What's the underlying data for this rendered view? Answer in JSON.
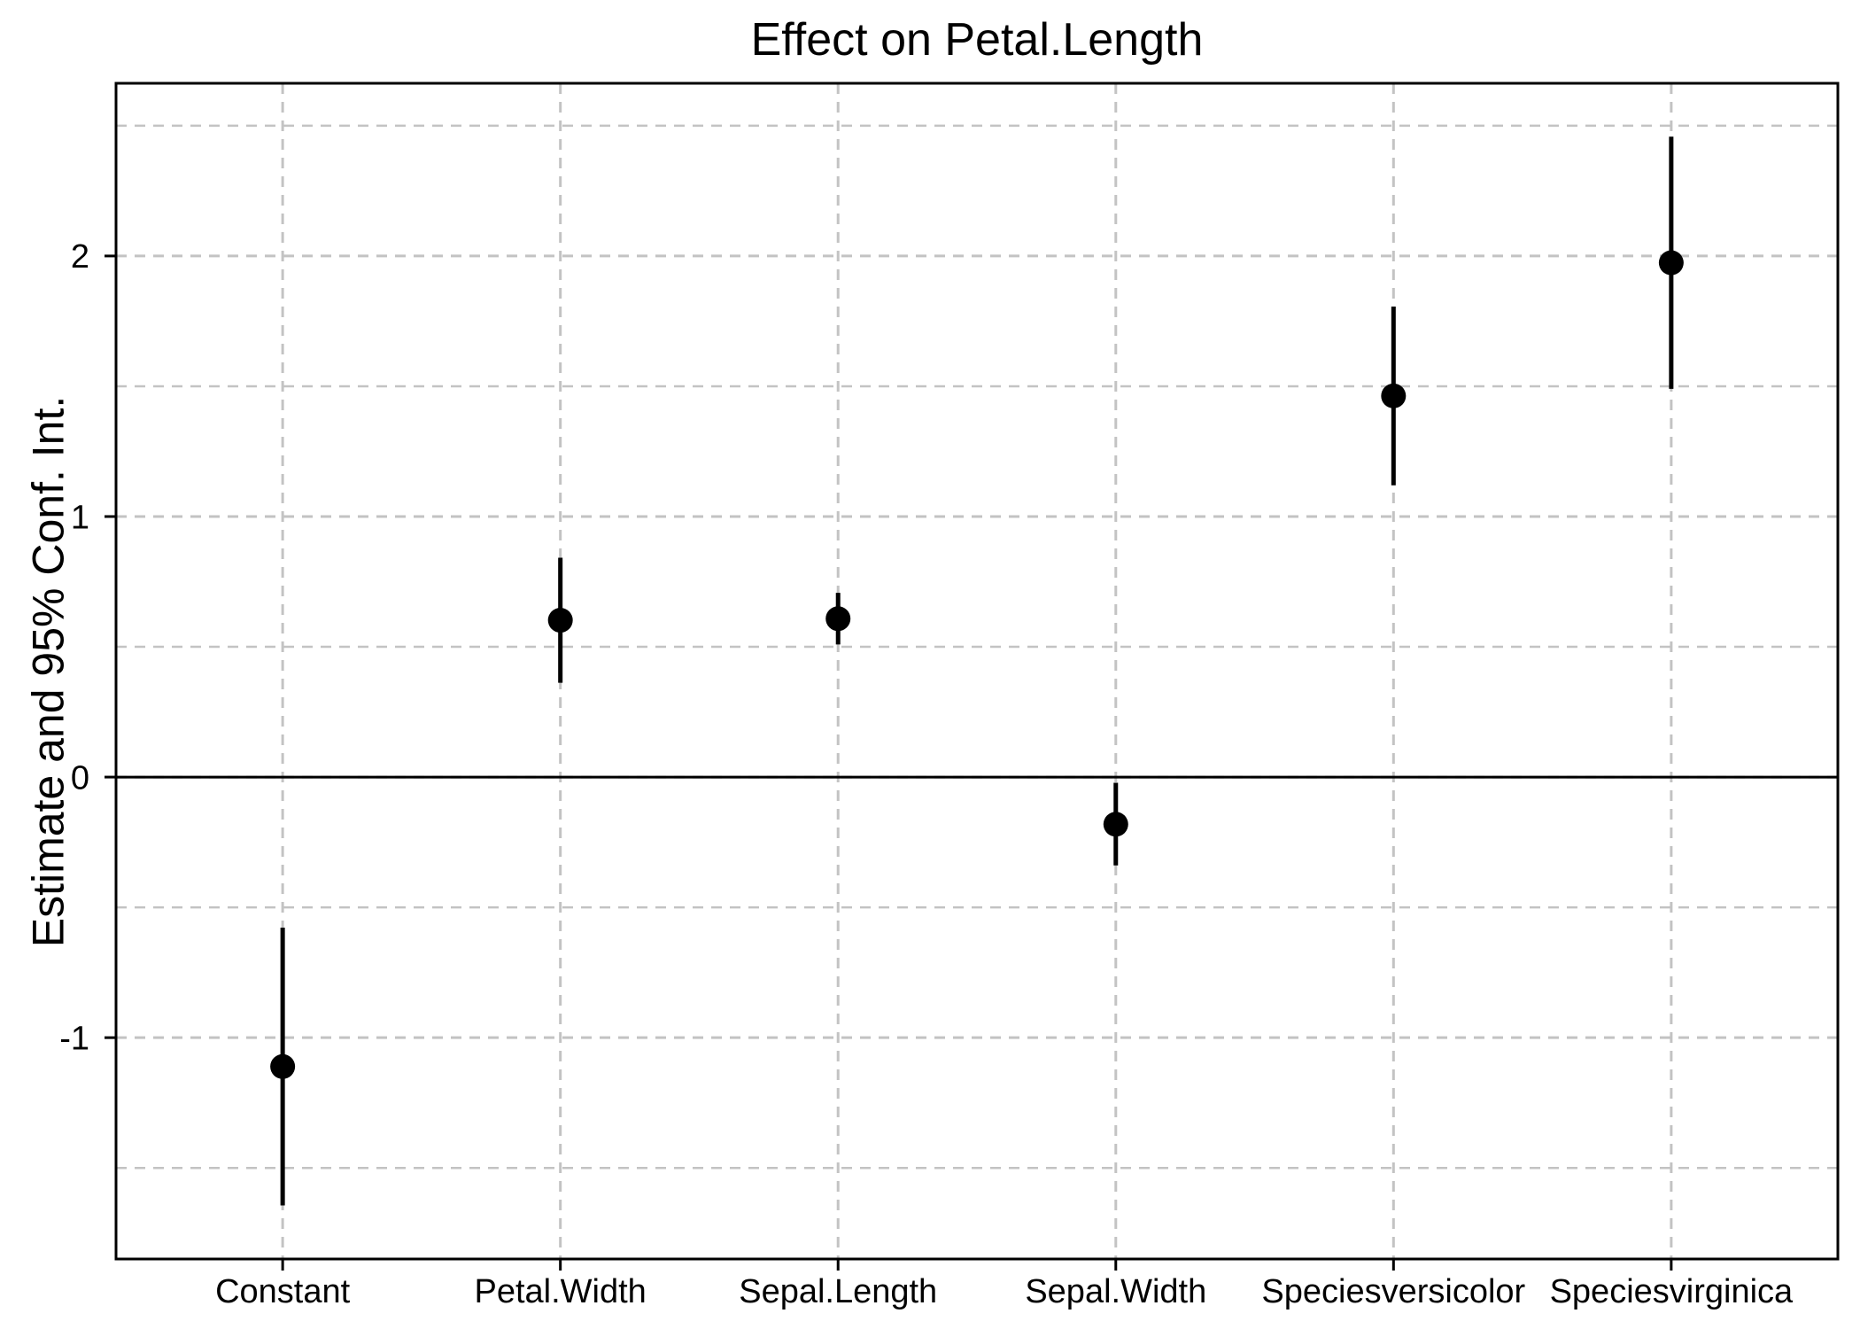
{
  "chart_data": {
    "type": "scatter",
    "subtype": "coefficient-plot-with-error-bars",
    "title": "Effect on Petal.Length",
    "xlabel": "",
    "ylabel": "Estimate and 95% Conf. Int.",
    "categories": [
      "Constant",
      "Petal.Width",
      "Sepal.Length",
      "Sepal.Width",
      "Speciesversicolor",
      "Speciesvirginica"
    ],
    "series": [
      {
        "name": "Estimate and 95% Conf. Int.",
        "estimates": [
          -1.111,
          0.602,
          0.608,
          -0.181,
          1.463,
          1.974
        ],
        "ci_lower": [
          -1.644,
          0.362,
          0.509,
          -0.339,
          1.12,
          1.49
        ],
        "ci_upper": [
          -0.578,
          0.842,
          0.707,
          -0.022,
          1.806,
          2.458
        ]
      }
    ],
    "y_ticks_major": [
      -1,
      0,
      1,
      2
    ],
    "y_ticks_minor": [
      -1.5,
      -0.5,
      0.5,
      1.5,
      2.5
    ],
    "ylim": [
      -1.8496,
      2.6628
    ],
    "zero_line": true,
    "grid": "dashed",
    "grid_on": true,
    "legend": "none",
    "point_color": "#000000",
    "line_color": "#000000",
    "grid_color": "#c3c3c3",
    "border_color": "#000000",
    "text_color": "#000000",
    "background": "#ffffff"
  }
}
